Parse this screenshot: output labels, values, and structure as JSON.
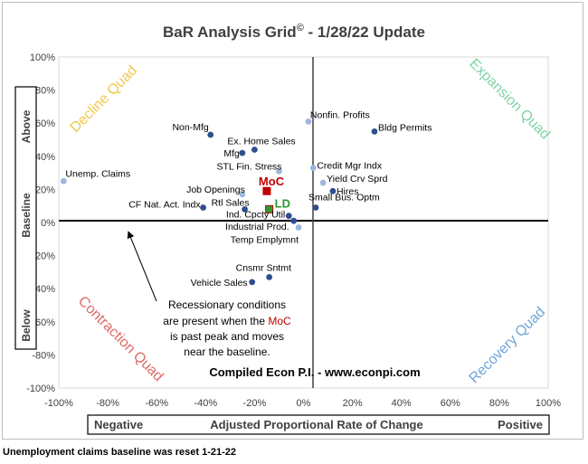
{
  "chart_data": {
    "type": "scatter",
    "title_main": "BaR Analysis Grid",
    "title_mark": "©",
    "title_suffix": " - 1/28/22 Update",
    "xlabel": "Adjusted Proportional Rate of Change",
    "xlabel_left": "Negative",
    "xlabel_right": "Positive",
    "ylabel": "Baseline",
    "ylabel_top": "Above",
    "ylabel_bottom": "Below",
    "xlim": [
      -1.0,
      1.0
    ],
    "ylim": [
      -1.0,
      1.0
    ],
    "x_ticks": [
      "-100%",
      "-80%",
      "-60%",
      "-40%",
      "-20%",
      "0%",
      "20%",
      "40%",
      "60%",
      "80%",
      "100%"
    ],
    "y_ticks": [
      "100%",
      "80%",
      "60%",
      "40%",
      "20%",
      "0%",
      "-20%",
      "-40%",
      "-60%",
      "-80%",
      "-100%"
    ],
    "quadrants": {
      "decline": "Decline Quad",
      "expansion": "Expansion Quad",
      "contraction": "Contraction Quad",
      "recovery": "Recovery Quad"
    },
    "colors": {
      "point_dark": "#2e4f8f",
      "point_light": "#9fb6dd",
      "moc": "#c00000",
      "ld": "#2e9a2e",
      "decline": "#f2c84b",
      "expansion": "#7fd4a6",
      "contraction": "#e06a6a",
      "recovery": "#6fa6d8"
    },
    "series": [
      {
        "label": "Non-Mfg",
        "x": -0.38,
        "y": 0.53,
        "style": "dark"
      },
      {
        "label": "Ex. Home Sales",
        "x": -0.2,
        "y": 0.44,
        "style": "dark"
      },
      {
        "label": "Mfg",
        "x": -0.25,
        "y": 0.42,
        "style": "dark"
      },
      {
        "label": "STL Fin. Stress",
        "x": -0.1,
        "y": 0.31,
        "style": "light"
      },
      {
        "label": "Unemp. Claims",
        "x": -0.98,
        "y": 0.25,
        "style": "light"
      },
      {
        "label": "Job Openings",
        "x": -0.25,
        "y": 0.17,
        "style": "light"
      },
      {
        "label": "Rtl Sales",
        "x": -0.24,
        "y": 0.08,
        "style": "dark"
      },
      {
        "label": "CF Nat. Act. Indx",
        "x": -0.41,
        "y": 0.09,
        "style": "dark"
      },
      {
        "label": "Ind. Cpcty Util",
        "x": -0.06,
        "y": 0.04,
        "style": "dark"
      },
      {
        "label": "Industrial Prod.",
        "x": -0.04,
        "y": 0.01,
        "style": "dark"
      },
      {
        "label": "Temp Emplymnt",
        "x": -0.02,
        "y": -0.03,
        "style": "light"
      },
      {
        "label": "Nonfin. Profits",
        "x": 0.02,
        "y": 0.61,
        "style": "light"
      },
      {
        "label": "Bldg Permits",
        "x": 0.29,
        "y": 0.55,
        "style": "dark"
      },
      {
        "label": "Credit Mgr Indx",
        "x": 0.04,
        "y": 0.33,
        "style": "light"
      },
      {
        "label": "Yield Crv Sprd",
        "x": 0.08,
        "y": 0.24,
        "style": "light"
      },
      {
        "label": "Hires",
        "x": 0.12,
        "y": 0.19,
        "style": "dark"
      },
      {
        "label": "Small Bus. Optm",
        "x": 0.05,
        "y": 0.09,
        "style": "dark"
      },
      {
        "label": "Cnsmr Sntmt",
        "x": -0.14,
        "y": -0.33,
        "style": "dark"
      },
      {
        "label": "Vehicle Sales",
        "x": -0.21,
        "y": -0.36,
        "style": "dark"
      }
    ],
    "highlights": [
      {
        "label": "MoC",
        "x": -0.15,
        "y": 0.19,
        "color": "#c00000"
      },
      {
        "label": "LD",
        "x": -0.14,
        "y": 0.08,
        "color": "#2e9a2e"
      }
    ],
    "annotation": {
      "line1": "Recessionary conditions",
      "line2_pre": "are present when the ",
      "line2_moc": "MoC",
      "line3": "is past peak and moves",
      "line4": "near the baseline."
    },
    "credit": "Compiled Econ P.I. - www.econpi.com"
  },
  "footnote": "Unemployment claims baseline was reset 1-21-22"
}
